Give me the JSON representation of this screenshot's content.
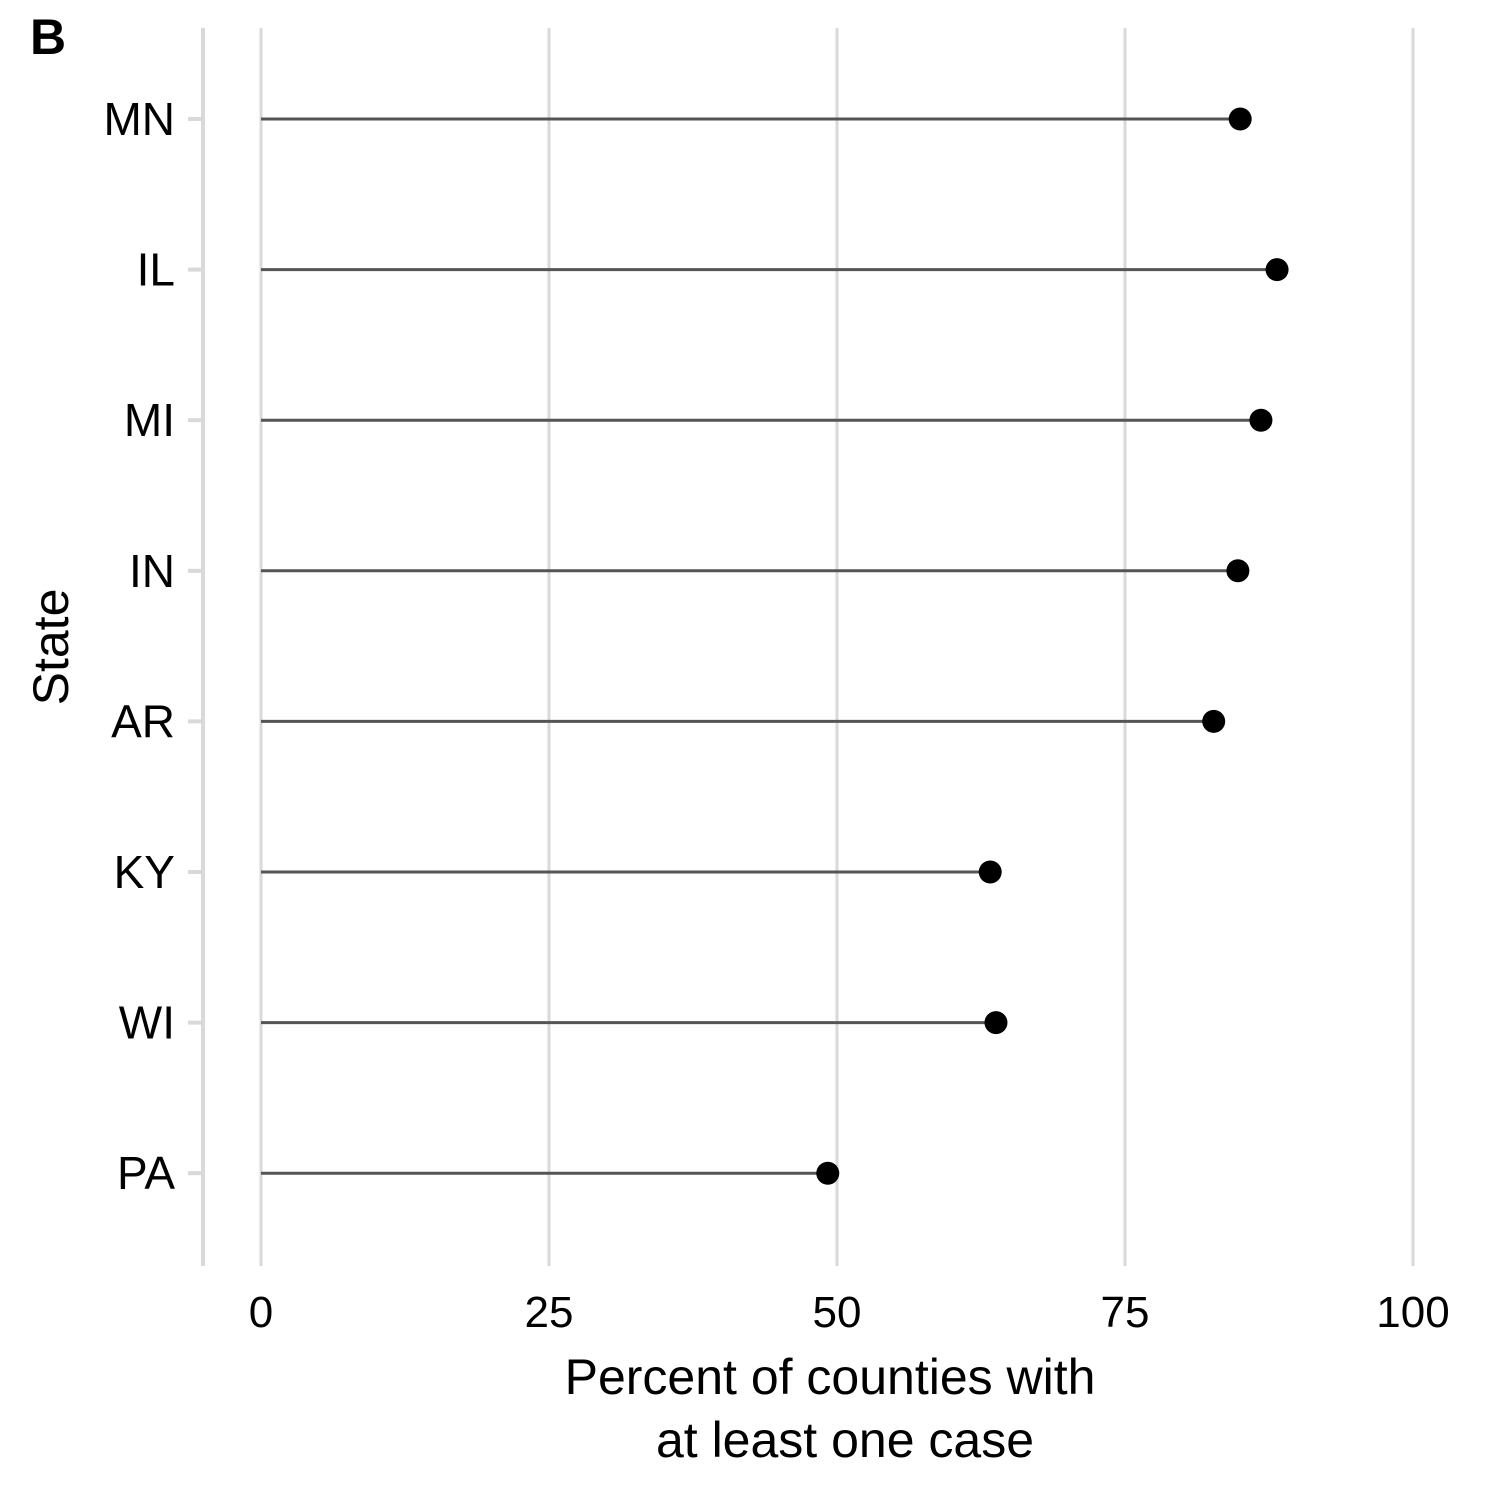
{
  "panel_label": "B",
  "chart_data": {
    "type": "lollipop",
    "orientation": "horizontal",
    "categories": [
      "MN",
      "IL",
      "MI",
      "IN",
      "AR",
      "KY",
      "WI",
      "PA"
    ],
    "values": [
      85,
      88.2,
      86.8,
      84.8,
      82.7,
      63.3,
      63.8,
      49.2
    ],
    "xlabel": [
      "Percent of counties with",
      "at least one case"
    ],
    "ylabel": "State",
    "xlim": [
      0,
      100
    ],
    "xticks": [
      0,
      25,
      50,
      75,
      100
    ],
    "grid": "vertical major",
    "colors": {
      "point": "#000000",
      "stem": "#555555",
      "grid": "#d9d9d9"
    }
  }
}
